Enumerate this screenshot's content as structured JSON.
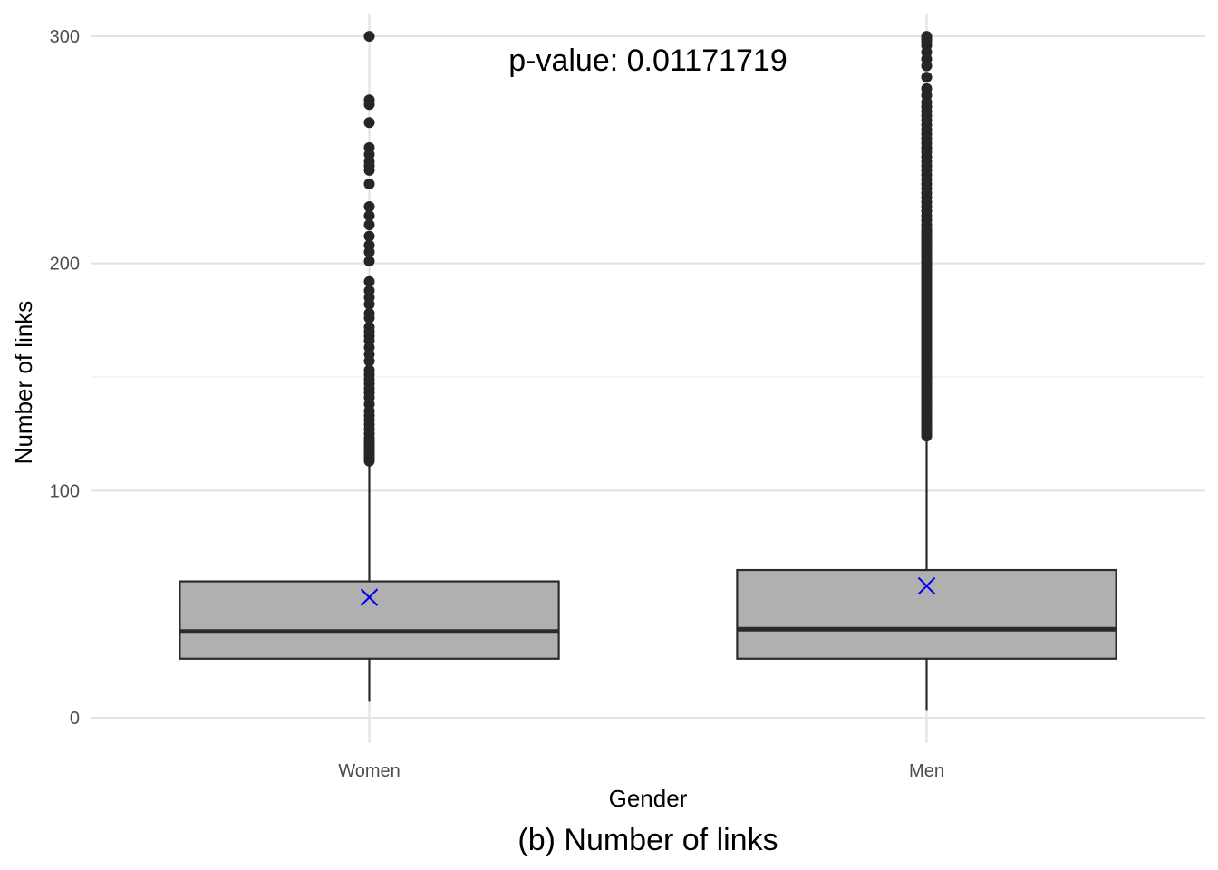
{
  "chart_data": {
    "type": "boxplot",
    "xlabel": "Gender",
    "ylabel": "Number of links",
    "ylim": [
      -8,
      310
    ],
    "yticks": [
      0,
      100,
      200,
      300
    ],
    "grid": true,
    "annotation": "p-value: 0.01171719",
    "caption": "(b) Number of links",
    "categories": [
      "Women",
      "Men"
    ],
    "boxes": [
      {
        "name": "Women",
        "whisker_low": 7,
        "q1": 26,
        "median": 38,
        "q3": 60,
        "whisker_high": 112,
        "mean": 53,
        "outliers": [
          113,
          114,
          115,
          116,
          117,
          118,
          119,
          120,
          121,
          122,
          123,
          125,
          127,
          129,
          131,
          133,
          135,
          138,
          141,
          143,
          145,
          147,
          149,
          151,
          153,
          157,
          160,
          163,
          166,
          168,
          170,
          172,
          176,
          178,
          182,
          185,
          188,
          192,
          201,
          205,
          208,
          212,
          217,
          221,
          225,
          235,
          241,
          243,
          245,
          248,
          251,
          262,
          270,
          272,
          300
        ]
      },
      {
        "name": "Men",
        "whisker_low": 3,
        "q1": 26,
        "median": 39,
        "q3": 65,
        "whisker_high": 123,
        "mean": 58,
        "outliers": [
          124,
          125,
          126,
          127,
          128,
          129,
          130,
          131,
          132,
          133,
          134,
          135,
          136,
          137,
          138,
          139,
          140,
          141,
          142,
          143,
          144,
          145,
          146,
          147,
          148,
          149,
          150,
          151,
          152,
          153,
          154,
          155,
          156,
          157,
          158,
          159,
          160,
          161,
          162,
          163,
          164,
          165,
          166,
          167,
          168,
          169,
          170,
          171,
          172,
          173,
          174,
          175,
          176,
          177,
          178,
          179,
          180,
          181,
          182,
          183,
          184,
          185,
          186,
          187,
          188,
          189,
          190,
          191,
          192,
          193,
          194,
          195,
          196,
          197,
          198,
          199,
          200,
          201,
          202,
          203,
          204,
          205,
          206,
          207,
          208,
          209,
          210,
          211,
          212,
          213,
          214,
          215,
          217,
          219,
          221,
          223,
          225,
          227,
          229,
          231,
          233,
          235,
          237,
          239,
          241,
          243,
          245,
          247,
          249,
          251,
          253,
          255,
          257,
          259,
          261,
          263,
          265,
          267,
          269,
          271,
          274,
          277,
          282,
          287,
          290,
          293,
          296,
          298,
          299,
          300
        ]
      }
    ],
    "colors": {
      "box_fill": "#b0b0b0",
      "box_stroke": "#2b2b2b",
      "outlier": "#262626",
      "mean_marker": "#0000ee",
      "grid_major": "#e3e3e3",
      "grid_minor": "#efefef"
    }
  }
}
